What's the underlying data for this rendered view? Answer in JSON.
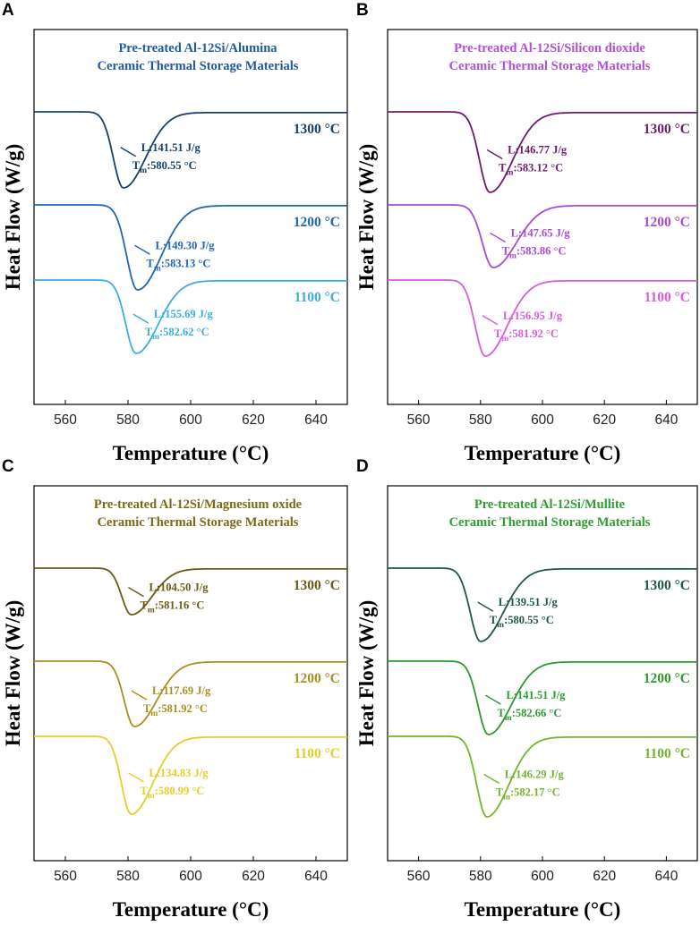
{
  "chart_data": [
    {
      "type": "line",
      "panel": "A",
      "title": [
        "Pre-treated Al-12Si/Alumina",
        "Ceramic Thermal Storage Materials"
      ],
      "title_color": "#1f5a9e",
      "xlabel": "Temperature (°C)",
      "ylabel": "Heat Flow (W/g)",
      "xlim": [
        550,
        650
      ],
      "xticks": [
        560,
        580,
        600,
        620,
        640
      ],
      "series": [
        {
          "name": "1300 °C",
          "color": "#17406d",
          "baseline": 0,
          "peak_x": 578.5,
          "depth": 85,
          "sigma": 3.2,
          "latent_heat": "L:141.51 J/g",
          "tm_value": ":580.55 °C"
        },
        {
          "name": "1200 °C",
          "color": "#2166b0",
          "baseline": 1,
          "peak_x": 583,
          "depth": 95,
          "sigma": 3.4,
          "latent_heat": "L:149.30 J/g",
          "tm_value": ":583.13 °C"
        },
        {
          "name": "1100 °C",
          "color": "#3aaee3",
          "baseline": 2,
          "peak_x": 582.5,
          "depth": 82,
          "sigma": 3.2,
          "latent_heat": "L:155.69 J/g",
          "tm_value": ":582.62 °C"
        }
      ]
    },
    {
      "type": "line",
      "panel": "B",
      "title": [
        "Pre-treated Al-12Si/Silicon dioxide",
        "Ceramic Thermal Storage Materials"
      ],
      "title_color": "#b04fdb",
      "xlabel": "Temperature (°C)",
      "ylabel": "Heat Flow (W/g)",
      "xlim": [
        550,
        650
      ],
      "xticks": [
        560,
        580,
        600,
        620,
        640
      ],
      "series": [
        {
          "name": "1300 °C",
          "color": "#6e1a6e",
          "baseline": 0,
          "peak_x": 583,
          "depth": 90,
          "sigma": 3.3,
          "latent_heat": "L:146.77 J/g",
          "tm_value": ":583.12 °C"
        },
        {
          "name": "1200 °C",
          "color": "#a64bd8",
          "baseline": 1,
          "peak_x": 584,
          "depth": 70,
          "sigma": 3.4,
          "latent_heat": "L:147.65 J/g",
          "tm_value": ":583.86 °C"
        },
        {
          "name": "1100 °C",
          "color": "#d95be0",
          "baseline": 2,
          "peak_x": 581.5,
          "depth": 85,
          "sigma": 3.2,
          "latent_heat": "L:156.95 J/g",
          "tm_value": ":581.92 °C"
        }
      ]
    },
    {
      "type": "line",
      "panel": "C",
      "title": [
        "Pre-treated Al-12Si/Magnesium oxide",
        "Ceramic Thermal Storage Materials"
      ],
      "title_color": "#7a6a18",
      "xlabel": "Temperature (°C)",
      "ylabel": "Heat Flow (W/g)",
      "xlim": [
        550,
        650
      ],
      "xticks": [
        560,
        580,
        600,
        620,
        640
      ],
      "series": [
        {
          "name": "1300 °C",
          "color": "#6b5a14",
          "baseline": 0,
          "peak_x": 581,
          "depth": 52,
          "sigma": 3.0,
          "latent_heat": "L:104.50 J/g",
          "tm_value": ":581.16 °C"
        },
        {
          "name": "1200 °C",
          "color": "#a8901f",
          "baseline": 1,
          "peak_x": 582,
          "depth": 73,
          "sigma": 3.2,
          "latent_heat": "L:117.69 J/g",
          "tm_value": ":581.92 °C"
        },
        {
          "name": "1100 °C",
          "color": "#e6cd2a",
          "baseline": 2,
          "peak_x": 581,
          "depth": 87,
          "sigma": 3.1,
          "latent_heat": "L:134.83 J/g",
          "tm_value": ":580.99 °C"
        }
      ]
    },
    {
      "type": "line",
      "panel": "D",
      "title": [
        "Pre-treated Al-12Si/Mullite",
        "Ceramic Thermal Storage Materials"
      ],
      "title_color": "#2e9e2e",
      "xlabel": "Temperature (°C)",
      "ylabel": "Heat Flow (W/g)",
      "xlim": [
        550,
        650
      ],
      "xticks": [
        560,
        580,
        600,
        620,
        640
      ],
      "series": [
        {
          "name": "1300 °C",
          "color": "#1d5a42",
          "baseline": 0,
          "peak_x": 580,
          "depth": 82,
          "sigma": 3.3,
          "latent_heat": "L:139.51 J/g",
          "tm_value": ":580.55 °C"
        },
        {
          "name": "1200 °C",
          "color": "#2e9a2e",
          "baseline": 1,
          "peak_x": 582.5,
          "depth": 82,
          "sigma": 3.3,
          "latent_heat": "L:141.51 J/g",
          "tm_value": ":582.66 °C"
        },
        {
          "name": "1100 °C",
          "color": "#73b52e",
          "baseline": 2,
          "peak_x": 582,
          "depth": 90,
          "sigma": 3.2,
          "latent_heat": "L:146.29 J/g",
          "tm_value": ":582.17 °C"
        }
      ]
    }
  ]
}
